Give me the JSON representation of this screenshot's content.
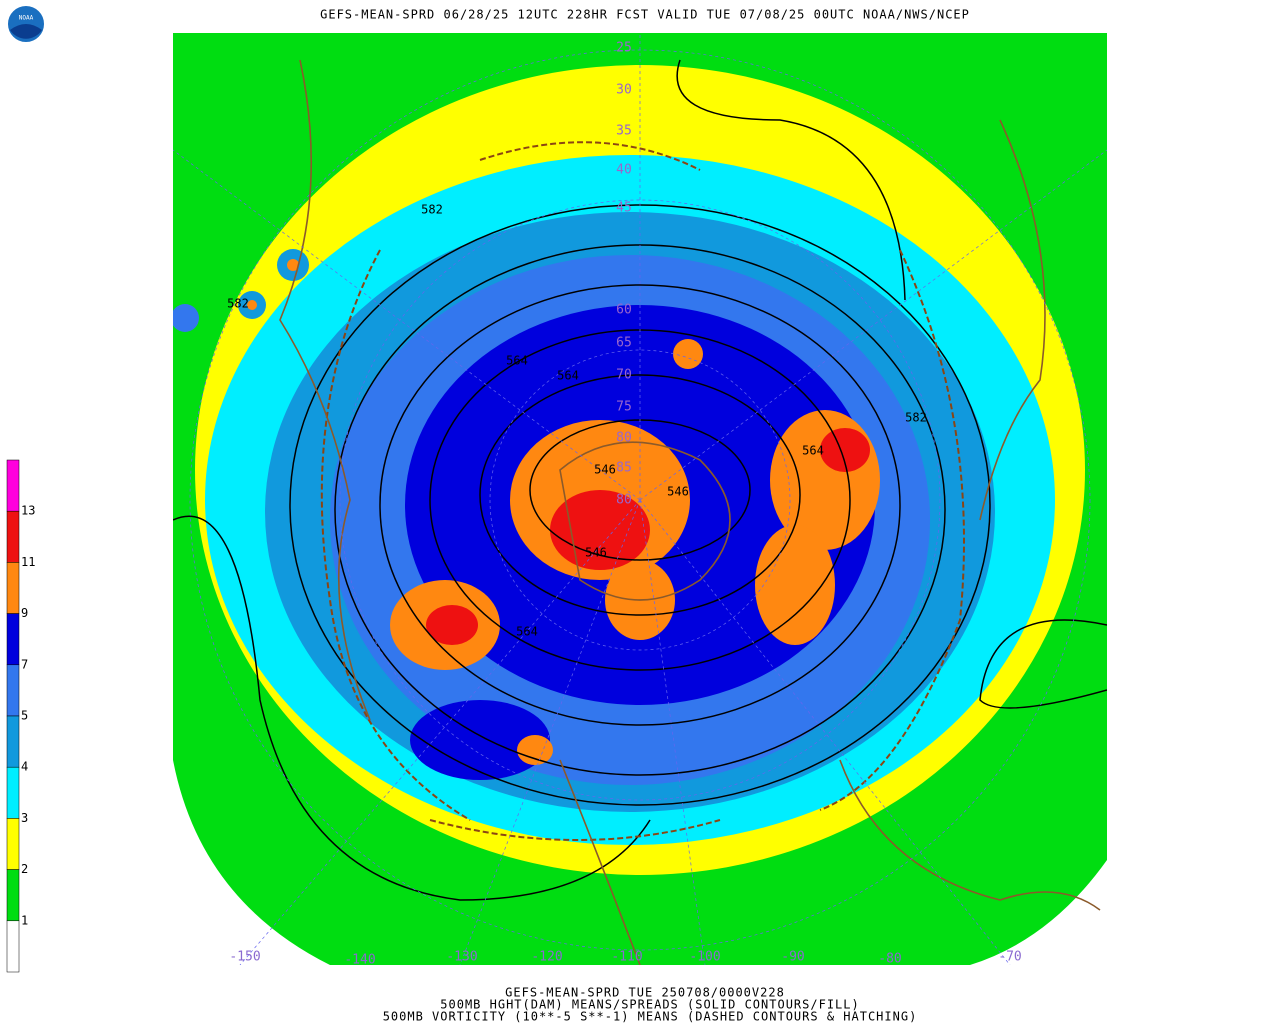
{
  "header": {
    "title": "GEFS-MEAN-SPRD 06/28/25 12UTC 228HR FCST VALID TUE 07/08/25 00UTC NOAA/NWS/NCEP",
    "logo": "NOAA"
  },
  "legend": {
    "labels": [
      13,
      11,
      9,
      7,
      5,
      4,
      3,
      2,
      1
    ],
    "colors": [
      "#ff00dd",
      "#ee1111",
      "#ff8811",
      "#0000dd",
      "#3377ee",
      "#1199dd",
      "#00eeff",
      "#ffff00",
      "#00dd11",
      "#ffffff"
    ]
  },
  "map": {
    "longitude_labels": [
      "-150",
      "-140",
      "-130",
      "-120",
      "-110",
      "-100",
      "-90",
      "-80",
      "-70"
    ],
    "latitude_labels": [
      "25",
      "30",
      "35",
      "40",
      "45",
      "60",
      "65",
      "70",
      "75",
      "80",
      "85",
      "80"
    ],
    "contour_labels": [
      "582",
      "582",
      "582",
      "564",
      "564",
      "564",
      "564",
      "546",
      "546",
      "546"
    ]
  },
  "footer": {
    "lines": [
      "GEFS-MEAN-SPRD TUE 250708/0000V228",
      "500MB HGHT(DAM) MEANS/SPREADS (SOLID CONTOURS/FILL)",
      "500MB VORTICITY (10**-5 S**-1) MEANS (DASHED CONTOURS & HATCHING)"
    ]
  }
}
